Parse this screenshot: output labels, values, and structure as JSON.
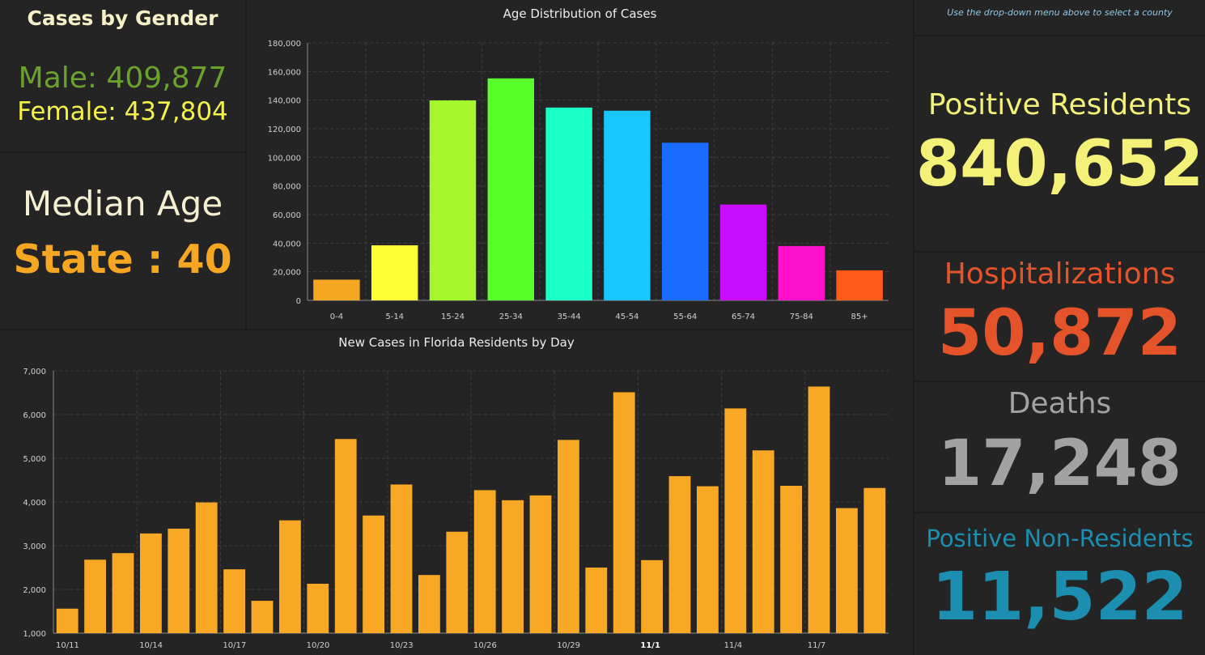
{
  "gender": {
    "title": "Cases by Gender",
    "male": "Male: 409,877",
    "female": "Female: 437,804"
  },
  "median_age": {
    "label": "Median Age",
    "value": "State : 40"
  },
  "county_note": "Use the drop-down menu above to select a county",
  "kpis": {
    "positive_residents": {
      "label": "Positive Residents",
      "value": "840,652",
      "color": "#f3f178"
    },
    "hospitalizations": {
      "label": "Hospitalizations",
      "value": "50,872",
      "color": "#e5532a"
    },
    "deaths": {
      "label": "Deaths",
      "value": "17,248",
      "color": "#a2a2a2"
    },
    "non_residents": {
      "label": "Positive Non-Residents",
      "value": "11,522",
      "color": "#1c8fb0"
    }
  },
  "chart_data": [
    {
      "type": "bar",
      "title": "Age Distribution of Cases",
      "xlabel": "",
      "ylabel": "",
      "categories": [
        "0-4",
        "5-14",
        "15-24",
        "25-34",
        "35-44",
        "45-54",
        "55-64",
        "65-74",
        "75-84",
        "85+"
      ],
      "values": [
        14500,
        38500,
        139800,
        155200,
        134800,
        132600,
        110200,
        67000,
        38000,
        21000
      ],
      "colors": [
        "#f5a623",
        "#ffff33",
        "#a4f72b",
        "#57ff2b",
        "#1affc6",
        "#1ac6ff",
        "#1a6bff",
        "#c80cff",
        "#ff11cc",
        "#ff5a1a"
      ],
      "ylim": [
        0,
        180000
      ],
      "yticks": [
        "0",
        "20,000",
        "40,000",
        "60,000",
        "80,000",
        "100,000",
        "120,000",
        "140,000",
        "160,000",
        "180,000"
      ],
      "grid": true,
      "legend": "none"
    },
    {
      "type": "bar",
      "title": "New Cases in Florida Residents by Day",
      "xlabel": "",
      "ylabel": "",
      "x": [
        "2020-10-11",
        "2020-10-12",
        "2020-10-13",
        "2020-10-14",
        "2020-10-15",
        "2020-10-16",
        "2020-10-17",
        "2020-10-18",
        "2020-10-19",
        "2020-10-20",
        "2020-10-21",
        "2020-10-22",
        "2020-10-23",
        "2020-10-24",
        "2020-10-25",
        "2020-10-26",
        "2020-10-27",
        "2020-10-28",
        "2020-10-29",
        "2020-10-30",
        "2020-10-31",
        "2020-11-01",
        "2020-11-02",
        "2020-11-03",
        "2020-11-04",
        "2020-11-05",
        "2020-11-06",
        "2020-11-07",
        "2020-11-08",
        "2020-11-09"
      ],
      "values": [
        1560,
        2680,
        2830,
        3280,
        3390,
        3990,
        2460,
        1740,
        3580,
        2130,
        5440,
        3690,
        4400,
        2330,
        3320,
        4270,
        4040,
        4150,
        5420,
        2500,
        6510,
        2670,
        4590,
        4360,
        6140,
        5180,
        4370,
        6640,
        3860,
        4320
      ],
      "color": "#f9a825",
      "xtick_labels": [
        "10/11",
        "10/14",
        "10/17",
        "10/20",
        "10/23",
        "10/26",
        "10/29",
        "11/1",
        "11/4",
        "11/7"
      ],
      "bold_tick": "11/1",
      "ylim": [
        1000,
        7000
      ],
      "yticks": [
        "1,000",
        "2,000",
        "3,000",
        "4,000",
        "5,000",
        "6,000",
        "7,000"
      ],
      "grid": true,
      "legend": "none"
    }
  ]
}
